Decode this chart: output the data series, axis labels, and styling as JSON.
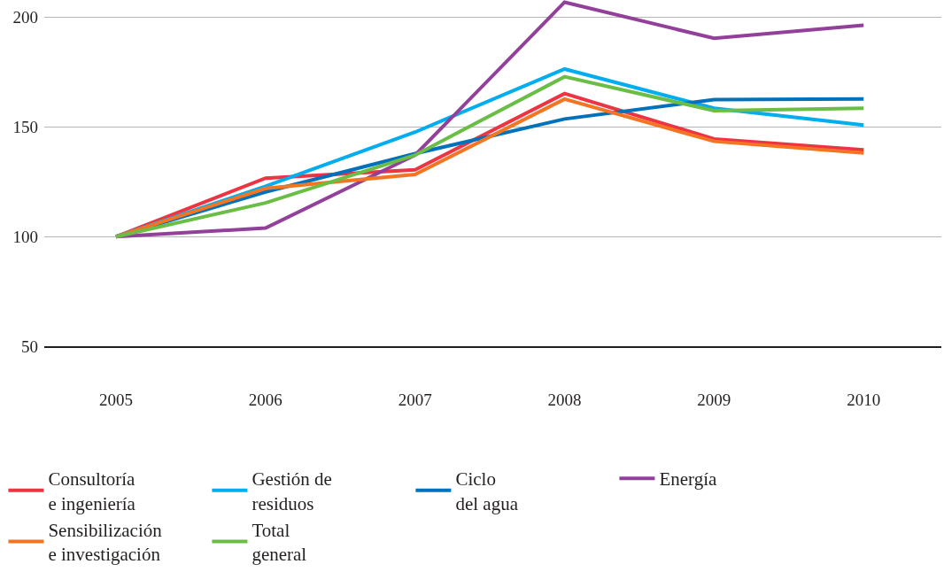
{
  "chart_data": {
    "type": "line",
    "categories": [
      "2005",
      "2006",
      "2007",
      "2008",
      "2009",
      "2010"
    ],
    "series": [
      {
        "name": "Consultoría e ingeniería",
        "color": "#ee3342",
        "values": [
          100,
          126.7,
          130.5,
          165.3,
          144.6,
          139.6
        ]
      },
      {
        "name": "Gestión de residuos",
        "color": "#00adef",
        "values": [
          100,
          123,
          147.7,
          176.5,
          158.6,
          150.9
        ]
      },
      {
        "name": "Ciclo del agua",
        "color": "#0072bc",
        "values": [
          100,
          120.4,
          137.9,
          153.7,
          162.5,
          162.8
        ]
      },
      {
        "name": "Energía",
        "color": "#92409a",
        "values": [
          100,
          103.9,
          137.2,
          207,
          190.5,
          196.5
        ]
      },
      {
        "name": "Sensibilización e investigación",
        "color": "#f47521",
        "values": [
          100,
          122,
          128.4,
          162.8,
          143.5,
          138.2
        ]
      },
      {
        "name": "Total general",
        "color": "#6abd45",
        "values": [
          100,
          115.4,
          137.2,
          173,
          157.5,
          158.6
        ]
      }
    ],
    "ylim": [
      50,
      208
    ],
    "yticks": [
      50,
      100,
      150,
      200
    ],
    "grid": "y",
    "legend": "bottom",
    "marker": "none",
    "line_style": "solid"
  }
}
